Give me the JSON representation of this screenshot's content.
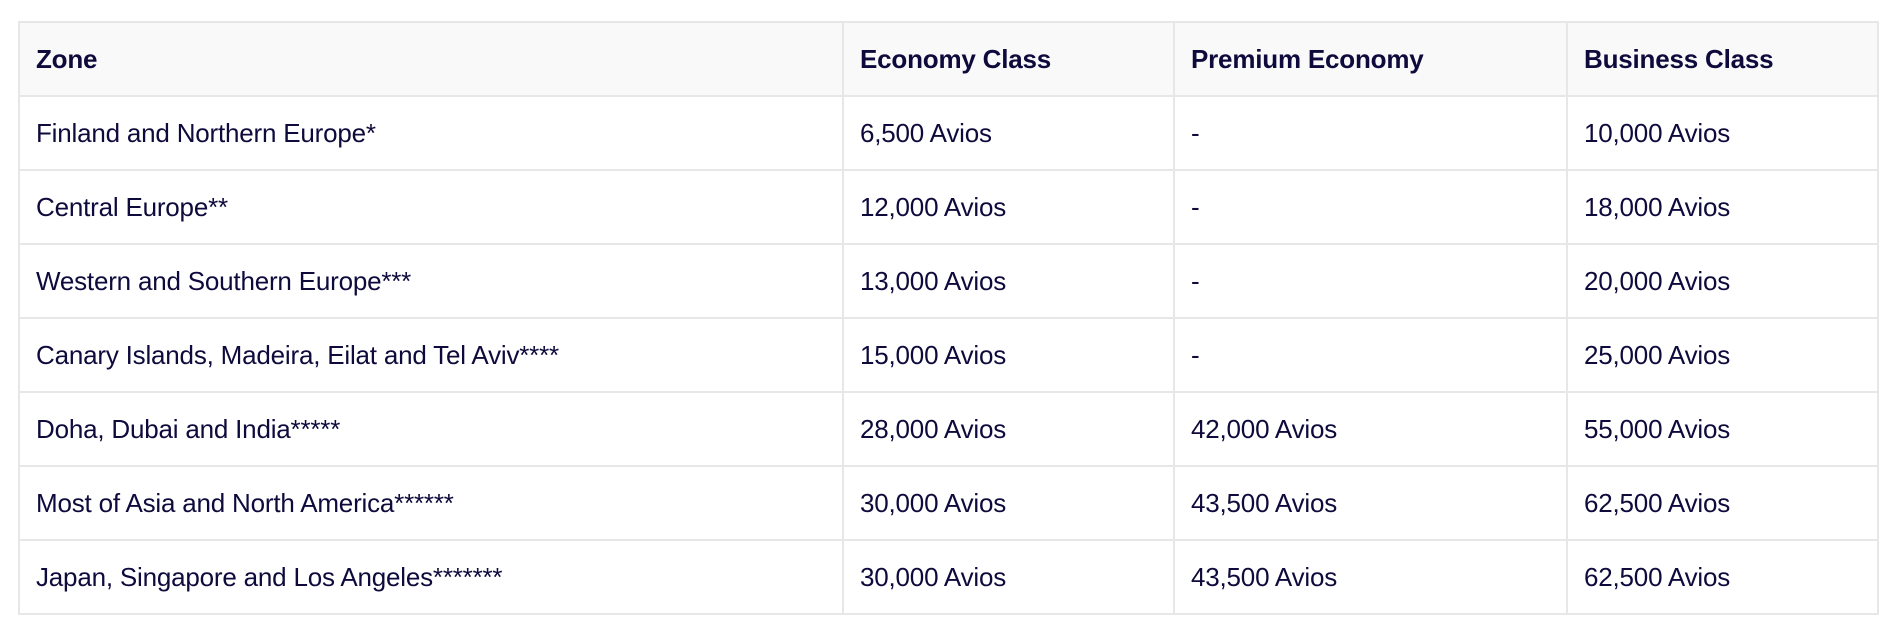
{
  "table": {
    "headers": [
      "Zone",
      "Economy Class",
      "Premium Economy",
      "Business Class"
    ],
    "rows": [
      [
        "Finland and Northern Europe*",
        "6,500 Avios",
        "-",
        "10,000 Avios"
      ],
      [
        "Central Europe**",
        "12,000 Avios",
        "-",
        "18,000 Avios"
      ],
      [
        "Western and Southern Europe***",
        "13,000 Avios",
        "-",
        "20,000 Avios"
      ],
      [
        "Canary Islands, Madeira, Eilat and Tel Aviv****",
        "15,000 Avios",
        "-",
        "25,000 Avios"
      ],
      [
        "Doha, Dubai and India*****",
        "28,000 Avios",
        "42,000 Avios",
        "55,000 Avios"
      ],
      [
        "Most of Asia and North America******",
        "30,000 Avios",
        "43,500 Avios",
        "62,500 Avios"
      ],
      [
        "Japan, Singapore and Los Angeles*******",
        "30,000 Avios",
        "43,500 Avios",
        "62,500 Avios"
      ]
    ]
  },
  "colors": {
    "text": "#0e0a3c",
    "border": "#e7e7ea",
    "header_bg": "#f9f9fa"
  }
}
